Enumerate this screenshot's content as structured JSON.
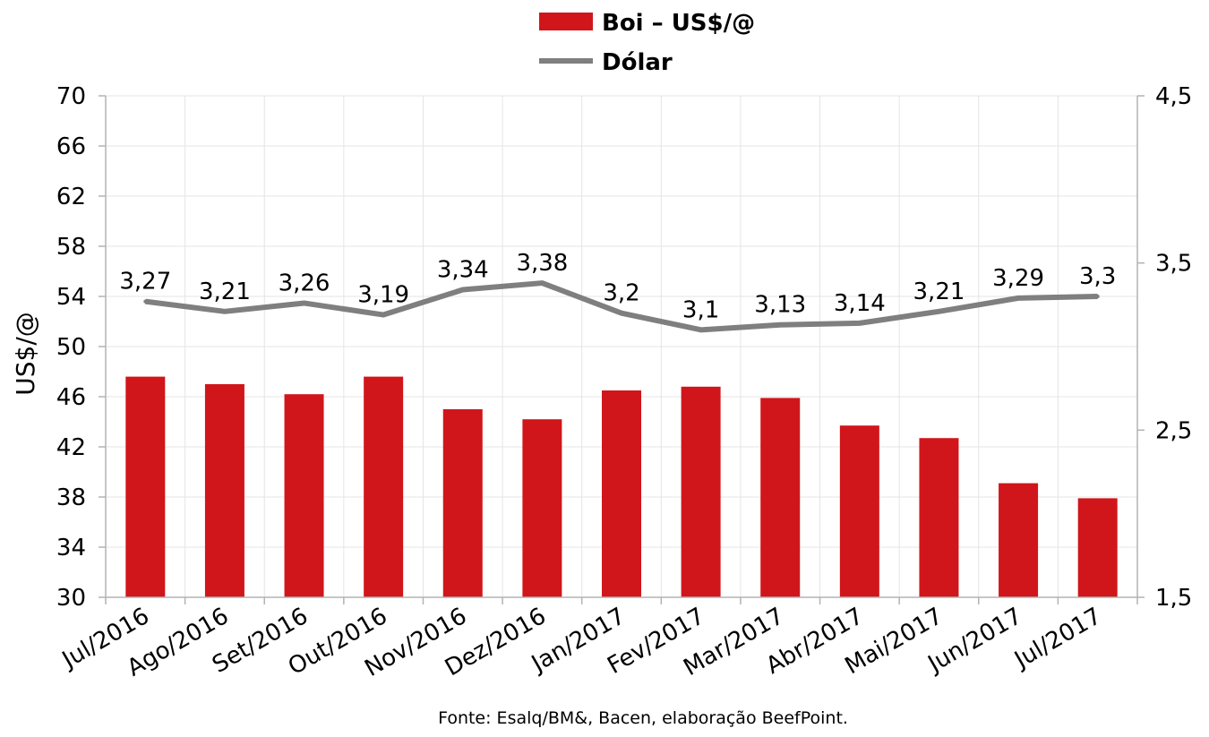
{
  "chart_data": {
    "type": "bar",
    "categories": [
      "Jul/2016",
      "Ago/2016",
      "Set/2016",
      "Out/2016",
      "Nov/2016",
      "Dez/2016",
      "Jan/2017",
      "Fev/2017",
      "Mar/2017",
      "Abr/2017",
      "Mai/2017",
      "Jun/2017",
      "Jul/2017"
    ],
    "series": [
      {
        "name": "Boi – US$/@",
        "kind": "bar",
        "axis": "left",
        "color": "#d0161b",
        "values": [
          47.6,
          47.0,
          46.2,
          47.6,
          45.0,
          44.2,
          46.5,
          46.8,
          45.9,
          43.7,
          42.7,
          39.1,
          37.9
        ]
      },
      {
        "name": "Dólar",
        "kind": "line",
        "axis": "right",
        "color": "#7f7f7f",
        "values": [
          3.27,
          3.21,
          3.26,
          3.19,
          3.34,
          3.38,
          3.2,
          3.1,
          3.13,
          3.14,
          3.21,
          3.29,
          3.3
        ],
        "data_labels": [
          "3,27",
          "3,21",
          "3,26",
          "3,19",
          "3,34",
          "3,38",
          "3,2",
          "3,1",
          "3,13",
          "3,14",
          "3,21",
          "3,29",
          "3,3"
        ]
      }
    ],
    "ylabel": "US$/@",
    "ylim": [
      30,
      70
    ],
    "yticks": [
      "30",
      "34",
      "38",
      "42",
      "46",
      "50",
      "54",
      "58",
      "62",
      "66",
      "70"
    ],
    "y2lim": [
      1.5,
      4.5
    ],
    "y2ticks": [
      "1,5",
      "2,5",
      "3,5",
      "4,5"
    ],
    "grid": true,
    "legend": "top-center",
    "source": "Fonte: Esalq/BM&, Bacen, elaboração BeefPoint."
  }
}
